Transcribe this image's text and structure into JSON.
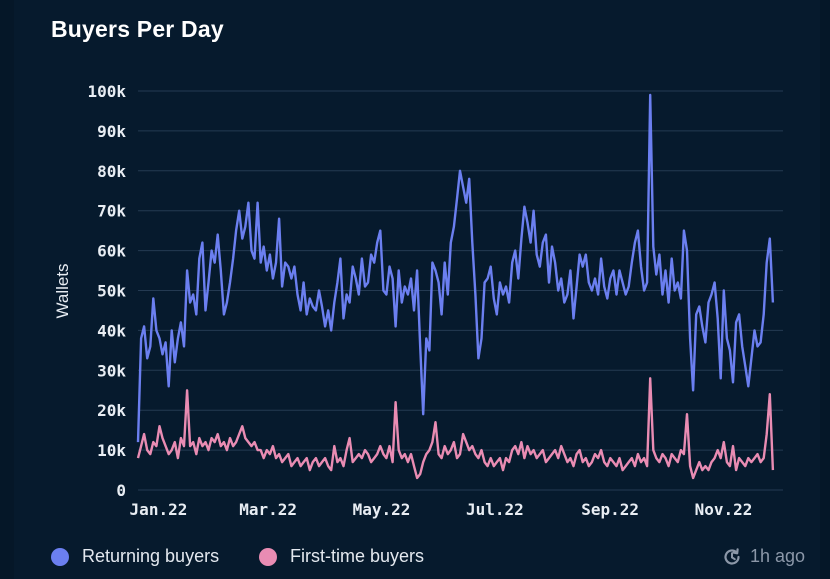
{
  "title": "Buyers Per Day",
  "updated_text": "1h ago",
  "colors": {
    "background": "#061a2d",
    "grid": "#243a52",
    "returning": "#6b7ff0",
    "first_time": "#e98cb3"
  },
  "legend": {
    "returning_label": "Returning buyers",
    "first_time_label": "First-time buyers"
  },
  "chart_data": {
    "type": "line",
    "title": "Buyers Per Day",
    "xlabel": "",
    "ylabel": "Wallets",
    "x_start": "2022-01-01",
    "x_end": "2022-12-14",
    "x_tick_labels": [
      "Jan.22",
      "Mar.22",
      "May.22",
      "Jul.22",
      "Sep.22",
      "Nov.22"
    ],
    "x_tick_dates": [
      "2022-01-12",
      "2022-03-12",
      "2022-05-12",
      "2022-07-12",
      "2022-09-12",
      "2022-11-12"
    ],
    "ylim": [
      0,
      100000
    ],
    "y_ticks": [
      0,
      10000,
      20000,
      30000,
      40000,
      50000,
      60000,
      70000,
      80000,
      90000,
      100000
    ],
    "y_tick_labels": [
      "0",
      "10k",
      "20k",
      "30k",
      "40k",
      "50k",
      "60k",
      "70k",
      "80k",
      "90k",
      "100k"
    ],
    "grid": true,
    "legend_position": "bottom-left",
    "series": [
      {
        "name": "Returning buyers",
        "color": "#6b7ff0",
        "values": [
          12000,
          38000,
          41000,
          33000,
          36000,
          48000,
          40000,
          38000,
          34000,
          37000,
          26000,
          40000,
          32000,
          38000,
          42000,
          36000,
          55000,
          47000,
          49000,
          44000,
          58000,
          62000,
          45000,
          52000,
          60000,
          57000,
          64000,
          55000,
          44000,
          47000,
          52000,
          58000,
          65000,
          70000,
          63000,
          66000,
          72000,
          60000,
          58000,
          72000,
          57000,
          61000,
          55000,
          59000,
          53000,
          57000,
          68000,
          51000,
          57000,
          56000,
          53000,
          56000,
          49000,
          45000,
          52000,
          44000,
          48000,
          46000,
          45000,
          50000,
          46000,
          41000,
          45000,
          40000,
          47000,
          52000,
          58000,
          43000,
          49000,
          47000,
          56000,
          53000,
          49000,
          58000,
          51000,
          52000,
          59000,
          57000,
          62000,
          65000,
          50000,
          49000,
          56000,
          53000,
          41000,
          55000,
          47000,
          51000,
          49000,
          53000,
          45000,
          55000,
          36000,
          19000,
          38000,
          35000,
          57000,
          55000,
          52000,
          44000,
          57000,
          49000,
          62000,
          66000,
          73000,
          80000,
          76000,
          72000,
          78000,
          62000,
          49000,
          33000,
          38000,
          52000,
          53000,
          56000,
          48000,
          44000,
          52000,
          49000,
          51000,
          47000,
          57000,
          60000,
          53000,
          63000,
          71000,
          67000,
          62000,
          70000,
          59000,
          56000,
          62000,
          64000,
          52000,
          61000,
          57000,
          50000,
          53000,
          47000,
          49000,
          55000,
          43000,
          51000,
          59000,
          56000,
          59000,
          52000,
          50000,
          53000,
          49000,
          58000,
          51000,
          48000,
          53000,
          55000,
          49000,
          55000,
          52000,
          49000,
          51000,
          57000,
          62000,
          65000,
          56000,
          50000,
          52000,
          99000,
          61000,
          54000,
          59000,
          49000,
          55000,
          47000,
          58000,
          50000,
          52000,
          48000,
          65000,
          60000,
          38000,
          25000,
          44000,
          46000,
          41000,
          37000,
          47000,
          49000,
          52000,
          43000,
          28000,
          50000,
          38000,
          35000,
          27000,
          42000,
          44000,
          36000,
          31000,
          26000,
          33000,
          40000,
          36000,
          37000,
          44000,
          57000,
          63000,
          47000
        ]
      },
      {
        "name": "First-time buyers",
        "color": "#e98cb3",
        "values": [
          8000,
          11000,
          14000,
          10000,
          9000,
          12000,
          11000,
          16000,
          13000,
          11000,
          9000,
          10000,
          12000,
          8000,
          13000,
          11000,
          25000,
          11000,
          12000,
          9000,
          13000,
          11000,
          12000,
          10000,
          13000,
          12000,
          14000,
          11000,
          12000,
          10000,
          13000,
          11000,
          12000,
          14000,
          16000,
          13000,
          12000,
          11000,
          12000,
          10000,
          10000,
          8000,
          10000,
          9000,
          11000,
          8000,
          9000,
          7000,
          8000,
          9000,
          6000,
          7000,
          8000,
          6000,
          7000,
          8000,
          5000,
          7000,
          8000,
          6000,
          7000,
          8000,
          6000,
          5000,
          11000,
          7000,
          8000,
          6000,
          10000,
          13000,
          7000,
          8000,
          9000,
          8000,
          10000,
          9000,
          7000,
          8000,
          9000,
          11000,
          9000,
          8000,
          11000,
          7000,
          22000,
          10000,
          8000,
          9000,
          7000,
          9000,
          6000,
          3000,
          4000,
          7000,
          9000,
          10000,
          12000,
          17000,
          9000,
          8000,
          11000,
          9000,
          10000,
          12000,
          8000,
          9000,
          14000,
          12000,
          10000,
          11000,
          9000,
          8000,
          10000,
          7000,
          6000,
          8000,
          6000,
          7000,
          8000,
          5000,
          8000,
          7000,
          10000,
          11000,
          9000,
          12000,
          8000,
          11000,
          9000,
          10000,
          8000,
          9000,
          10000,
          7000,
          8000,
          9000,
          10000,
          8000,
          11000,
          9000,
          7000,
          8000,
          6000,
          9000,
          10000,
          7000,
          8000,
          6000,
          7000,
          9000,
          8000,
          10000,
          7000,
          6000,
          8000,
          7000,
          6000,
          8000,
          5000,
          6000,
          7000,
          8000,
          6000,
          9000,
          7000,
          8000,
          6000,
          28000,
          10000,
          8000,
          7000,
          9000,
          8000,
          6000,
          9000,
          8000,
          7000,
          10000,
          9000,
          19000,
          6000,
          3000,
          5000,
          7000,
          5000,
          6000,
          5000,
          7000,
          8000,
          10000,
          8000,
          12000,
          7000,
          6000,
          11000,
          5000,
          8000,
          7000,
          6000,
          8000,
          7000,
          8000,
          9000,
          7000,
          8000,
          14000,
          24000,
          5000
        ]
      }
    ]
  }
}
